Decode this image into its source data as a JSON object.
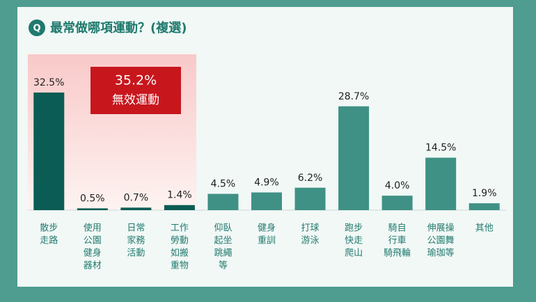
{
  "chart_data": {
    "type": "bar",
    "title": "最常做哪項運動？(複選)",
    "categories": [
      [
        "散步",
        "走路"
      ],
      [
        "使用",
        "公園",
        "健身",
        "器材"
      ],
      [
        "日常",
        "家務",
        "活動"
      ],
      [
        "工作",
        "勞動",
        "如搬",
        "重物"
      ],
      [
        "仰臥",
        "起坐",
        "跳繩",
        "等"
      ],
      [
        "健身",
        "重訓"
      ],
      [
        "打球",
        "游泳"
      ],
      [
        "跑步",
        "快走",
        "爬山"
      ],
      [
        "騎自",
        "行車",
        "騎飛輪"
      ],
      [
        "伸展操",
        "公園舞",
        "瑜珈等"
      ],
      [
        "其他"
      ]
    ],
    "values": [
      32.5,
      0.5,
      0.7,
      1.4,
      4.5,
      4.9,
      6.2,
      28.7,
      4.0,
      14.5,
      1.9
    ],
    "value_labels": [
      "32.5%",
      "0.5%",
      "0.7%",
      "1.4%",
      "4.5%",
      "4.9%",
      "6.2%",
      "28.7%",
      "4.0%",
      "14.5%",
      "1.9%"
    ],
    "colors": [
      "#0b5c54",
      "#0b5c54",
      "#0b5c54",
      "#0b5c54",
      "#3f9185",
      "#3f9185",
      "#3f9185",
      "#3f9185",
      "#3f9185",
      "#3f9185",
      "#3f9185"
    ],
    "ylim": [
      0,
      40
    ],
    "annotation": {
      "label": "35.2%",
      "text": "無效運動"
    }
  }
}
